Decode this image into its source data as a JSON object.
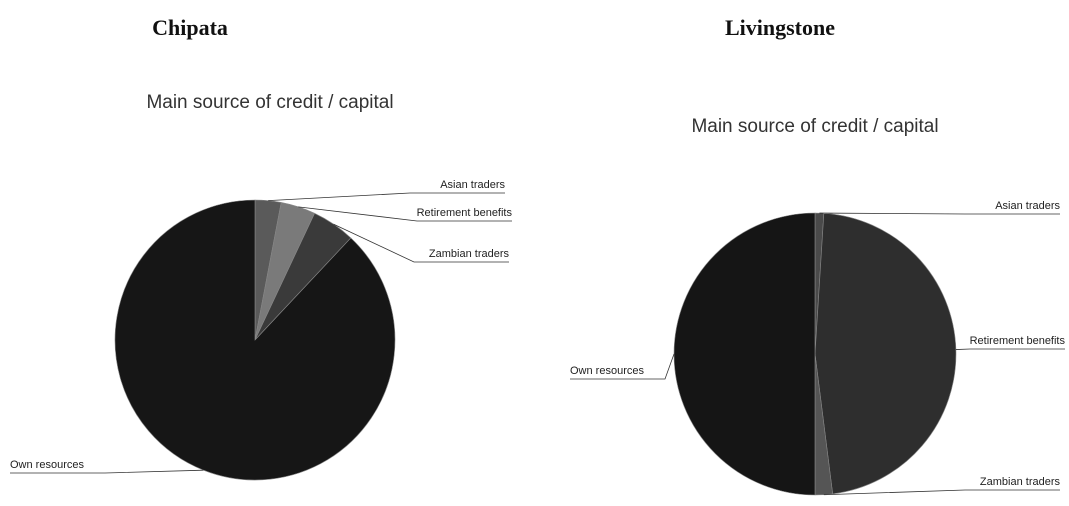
{
  "chart_data": [
    {
      "type": "pie",
      "heading": "Chipata",
      "title": "Main source of credit / capital",
      "categories": [
        "Asian traders",
        "Retirement benefits",
        "Zambian traders",
        "Own resources"
      ],
      "values": [
        3,
        4,
        5,
        88
      ],
      "colors": [
        "#5a5a5a",
        "#7a7a7a",
        "#3a3a3a",
        "#161616"
      ]
    },
    {
      "type": "pie",
      "heading": "Livingstone",
      "title": "Main source of credit / capital",
      "categories": [
        "Asian traders",
        "Retirement benefits",
        "Zambian traders",
        "Own resources"
      ],
      "values": [
        1,
        47,
        2,
        50
      ],
      "colors": [
        "#4a4a4a",
        "#2e2e2e",
        "#555555",
        "#151515"
      ]
    }
  ]
}
